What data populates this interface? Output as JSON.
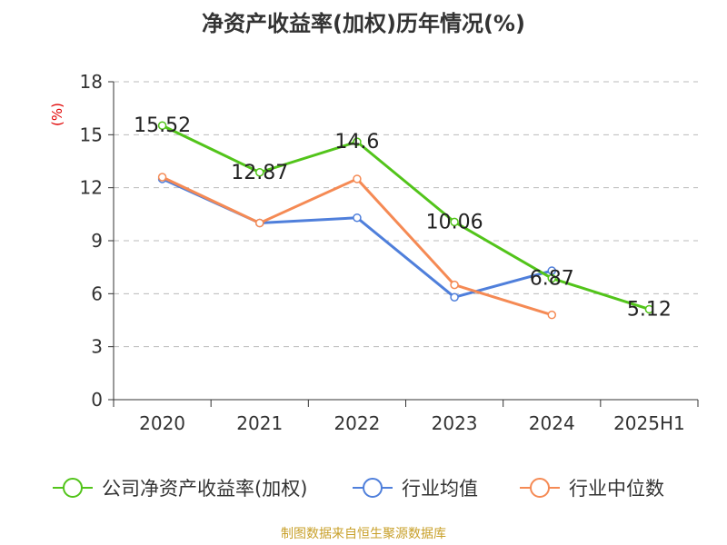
{
  "title": "净资产收益率(加权)历年情况(%)",
  "source": "制图数据来自恒生聚源数据库",
  "colors": {
    "company": "#52c41a",
    "industry_avg": "#4f7fdb",
    "industry_median": "#f58a54",
    "axis": "#333333",
    "grid": "#bbbbbb",
    "unit": "#e00000",
    "source_text": "#c8a02a"
  },
  "chart_data": {
    "type": "line",
    "title": "净资产收益率(加权)历年情况(%)",
    "ylabel": "(%)",
    "xlabel": "",
    "categories": [
      "2020",
      "2021",
      "2022",
      "2023",
      "2024",
      "2025H1"
    ],
    "ylim": [
      0,
      18
    ],
    "yticks": [
      0,
      3,
      6,
      9,
      12,
      15,
      18
    ],
    "grid": true,
    "legend": "bottom",
    "series": [
      {
        "name": "公司净资产收益率(加权)",
        "color_key": "company",
        "values": [
          15.52,
          12.87,
          14.6,
          10.06,
          6.87,
          5.12
        ],
        "labels": [
          "15.52",
          "12.87",
          "14.6",
          "10.06",
          "6.87",
          "5.12"
        ]
      },
      {
        "name": "行业均值",
        "color_key": "industry_avg",
        "values": [
          12.5,
          10.0,
          10.3,
          5.8,
          7.3,
          null
        ]
      },
      {
        "name": "行业中位数",
        "color_key": "industry_median",
        "values": [
          12.6,
          10.0,
          12.5,
          6.5,
          4.8,
          null
        ]
      }
    ]
  }
}
